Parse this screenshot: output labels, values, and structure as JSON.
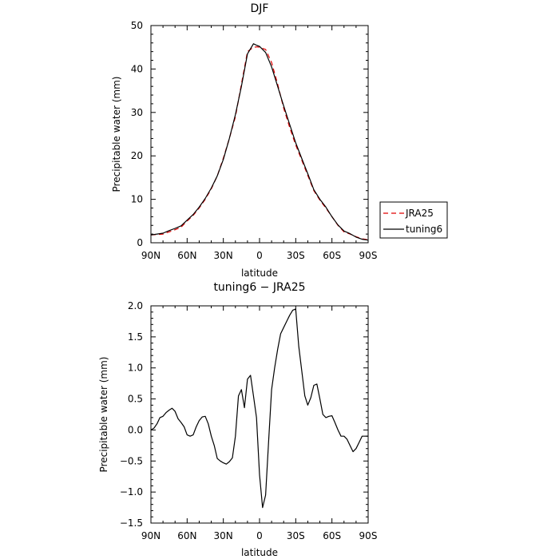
{
  "chart_data": [
    {
      "type": "line",
      "title": "DJF",
      "xlabel": "latitude",
      "ylabel": "Precipitable water  (mm)",
      "x_ticks": [
        "90N",
        "60N",
        "30N",
        "0",
        "30S",
        "60S",
        "90S"
      ],
      "y_ticks": [
        "0",
        "10",
        "20",
        "30",
        "40",
        "50"
      ],
      "ylim": [
        0,
        50
      ],
      "xlim": [
        90,
        -90
      ],
      "legend_position": "outside-right",
      "series": [
        {
          "name": "JRA25",
          "color": "#e00000",
          "style": "dashed",
          "x": [
            90,
            85,
            80,
            75,
            70,
            65,
            60,
            55,
            50,
            45,
            40,
            35,
            30,
            25,
            20,
            15,
            10,
            5,
            2,
            0,
            -5,
            -10,
            -15,
            -20,
            -25,
            -30,
            -35,
            -40,
            -45,
            -50,
            -55,
            -60,
            -65,
            -70,
            -75,
            -80,
            -85,
            -90
          ],
          "values": [
            1.8,
            1.9,
            2.0,
            2.5,
            3.0,
            3.6,
            5.0,
            6.3,
            8.0,
            10.0,
            12.4,
            15.4,
            19.5,
            24.0,
            29.0,
            36.5,
            44.0,
            45.0,
            45.1,
            45.0,
            44.5,
            41.5,
            36.5,
            31.0,
            26.5,
            22.5,
            19.0,
            15.5,
            12.0,
            9.8,
            8.0,
            6.0,
            4.0,
            2.5,
            2.0,
            1.4,
            0.9,
            0.7
          ]
        },
        {
          "name": "tuning6",
          "color": "#000000",
          "style": "solid",
          "x": [
            90,
            85,
            80,
            75,
            70,
            65,
            60,
            55,
            50,
            45,
            40,
            35,
            30,
            25,
            20,
            15,
            10,
            5,
            2,
            0,
            -5,
            -10,
            -15,
            -20,
            -25,
            -30,
            -35,
            -40,
            -45,
            -50,
            -55,
            -60,
            -65,
            -70,
            -75,
            -80,
            -85,
            -90
          ],
          "values": [
            1.8,
            2.0,
            2.2,
            2.8,
            3.3,
            3.9,
            5.2,
            6.5,
            8.2,
            10.2,
            12.6,
            15.4,
            19.2,
            24.0,
            29.5,
            36.0,
            43.5,
            45.8,
            45.4,
            45.2,
            43.8,
            40.5,
            36.0,
            31.5,
            27.2,
            23.0,
            19.4,
            15.9,
            12.2,
            10.0,
            8.2,
            6.0,
            4.1,
            2.7,
            2.1,
            1.3,
            0.8,
            0.6
          ]
        }
      ]
    },
    {
      "type": "line",
      "title": "tuning6 − JRA25",
      "xlabel": "latitude",
      "ylabel": "Precipitable water  (mm)",
      "x_ticks": [
        "90N",
        "60N",
        "30N",
        "0",
        "30S",
        "60S",
        "90S"
      ],
      "y_ticks": [
        "2.0",
        "1.5",
        "1.0",
        "0.5",
        "0.0",
        "−0.5",
        "−1.0",
        "−1.5"
      ],
      "ylim": [
        -1.5,
        2.0
      ],
      "xlim": [
        90,
        -90
      ],
      "series": [
        {
          "color": "#000000",
          "style": "solid",
          "x": [
            90,
            87.5,
            85,
            82.5,
            80,
            77.5,
            75,
            72.5,
            70,
            67.5,
            65,
            62.5,
            60,
            57.5,
            55,
            52.5,
            50,
            47.5,
            45,
            42.5,
            40,
            37.5,
            35,
            32.5,
            30,
            27.5,
            25,
            22.5,
            20,
            17.5,
            15,
            12.5,
            10,
            7.5,
            5,
            2.5,
            0,
            -2.5,
            -5,
            -7.5,
            -10,
            -12.5,
            -15,
            -17.5,
            -20,
            -22.5,
            -25,
            -27.5,
            -30,
            -32.5,
            -35,
            -37.5,
            -40,
            -42.5,
            -45,
            -47.5,
            -50,
            -52.5,
            -55,
            -57.5,
            -60,
            -62.5,
            -65,
            -67.5,
            -70,
            -72.5,
            -75,
            -77.5,
            -80,
            -82.5,
            -85,
            -87.5,
            -90
          ],
          "values": [
            0.0,
            0.03,
            0.1,
            0.2,
            0.22,
            0.28,
            0.32,
            0.35,
            0.3,
            0.18,
            0.12,
            0.05,
            -0.08,
            -0.1,
            -0.08,
            0.05,
            0.15,
            0.21,
            0.22,
            0.1,
            -0.1,
            -0.25,
            -0.46,
            -0.5,
            -0.53,
            -0.55,
            -0.51,
            -0.45,
            -0.1,
            0.55,
            0.65,
            0.36,
            0.82,
            0.88,
            0.55,
            0.2,
            -0.72,
            -1.25,
            -1.05,
            -0.2,
            0.65,
            1.0,
            1.3,
            1.55,
            1.65,
            1.75,
            1.85,
            1.93,
            1.95,
            1.35,
            0.95,
            0.55,
            0.4,
            0.52,
            0.72,
            0.74,
            0.5,
            0.25,
            0.2,
            0.22,
            0.23,
            0.12,
            0.0,
            -0.1,
            -0.1,
            -0.15,
            -0.25,
            -0.35,
            -0.3,
            -0.2,
            -0.1,
            -0.1,
            -0.1
          ]
        }
      ]
    }
  ]
}
